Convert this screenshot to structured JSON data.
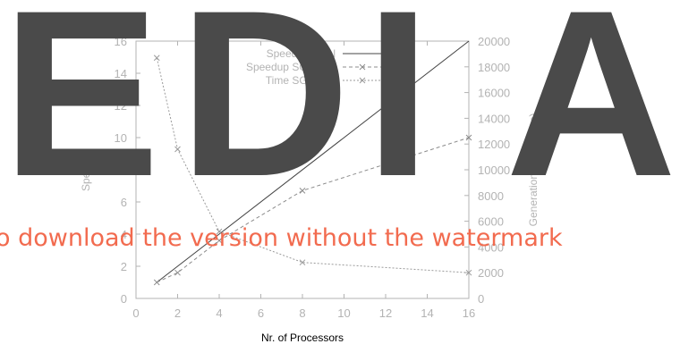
{
  "chart_data": {
    "type": "line",
    "xlabel": "Nr. of Processors",
    "ylabel": "Speedup",
    "y2label": "Generation Time (Secs)",
    "xlim": [
      0,
      16
    ],
    "ylim": [
      0,
      16
    ],
    "y2lim": [
      0,
      20000
    ],
    "xticks": [
      0,
      2,
      4,
      6,
      8,
      10,
      12,
      14,
      16
    ],
    "yticks": [
      0,
      2,
      4,
      6,
      8,
      10,
      12,
      14,
      16
    ],
    "y2ticks": [
      0,
      2000,
      4000,
      6000,
      8000,
      10000,
      12000,
      14000,
      16000,
      18000,
      20000
    ],
    "grid": false,
    "legend_position": "top-center",
    "series": [
      {
        "name": "Speedup Ideal",
        "axis": "left",
        "style": "solid",
        "marker": "none",
        "color": "#444444",
        "x": [
          1,
          16
        ],
        "y": [
          1,
          16
        ]
      },
      {
        "name": "Speedup SGI-O2K",
        "axis": "left",
        "style": "dashed",
        "marker": "x",
        "color": "#8c8c8c",
        "x": [
          1,
          2,
          4,
          8,
          16
        ],
        "y": [
          1,
          1.6,
          3.6,
          6.7,
          10
        ]
      },
      {
        "name": "Time SGI-O2K",
        "axis": "right",
        "style": "dotted",
        "marker": "x",
        "color": "#9a9a9a",
        "x": [
          1,
          2,
          4,
          8,
          16
        ],
        "y": [
          18700,
          11600,
          5200,
          2800,
          2000
        ]
      }
    ]
  },
  "watermark": {
    "letters": [
      "E",
      "D",
      "I",
      "A"
    ],
    "text": "o download the version without the watermark"
  }
}
